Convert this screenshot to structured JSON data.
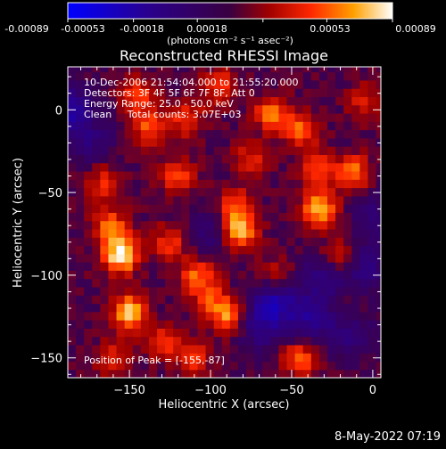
{
  "colorbar": {
    "ticks": [
      "-0.00089",
      "-0.00053",
      "-0.00018",
      "0.00018",
      "0.00053",
      "0.00089"
    ],
    "units": "(photons cm⁻² s⁻¹ asec⁻²)"
  },
  "timestamp": "8-May-2022 07:19",
  "chart_data": {
    "type": "heatmap",
    "title": "Reconstructed RHESSI Image",
    "xlabel": "Heliocentric X (arcsec)",
    "ylabel": "Heliocentric Y (arcsec)",
    "xlim": [
      -188,
      5
    ],
    "ylim": [
      -162,
      26
    ],
    "xticks": [
      -150,
      -100,
      -50,
      0
    ],
    "yticks": [
      0,
      -50,
      -100,
      -150
    ],
    "colorbar_range": [
      -0.00089,
      0.00089
    ],
    "annotations": [
      "10-Dec-2006 21:54:04.000 to 21:55:20.000",
      "Detectors: 3F 4F 5F 6F 7F 8F, Att 0",
      "Energy Range: 25.0 - 50.0 keV",
      "Clean     Total counts: 3.07E+03"
    ],
    "peak_label": "Position of Peak = [-155,-87]",
    "hotspots": [
      {
        "x": -155,
        "y": -87,
        "v": 1.0
      },
      {
        "x": -150,
        "y": -122,
        "v": 0.8
      },
      {
        "x": -162,
        "y": -70,
        "v": 0.55
      },
      {
        "x": -165,
        "y": -45,
        "v": 0.45
      },
      {
        "x": -138,
        "y": -10,
        "v": 0.55
      },
      {
        "x": -115,
        "y": -5,
        "v": 0.45
      },
      {
        "x": -120,
        "y": -40,
        "v": 0.5
      },
      {
        "x": -82,
        "y": -73,
        "v": 0.85
      },
      {
        "x": -85,
        "y": -58,
        "v": 0.5
      },
      {
        "x": -33,
        "y": -60,
        "v": 0.8
      },
      {
        "x": -35,
        "y": -35,
        "v": 0.5
      },
      {
        "x": -62,
        "y": -2,
        "v": 0.6
      },
      {
        "x": -45,
        "y": -12,
        "v": 0.55
      },
      {
        "x": -12,
        "y": -38,
        "v": 0.6
      },
      {
        "x": -20,
        "y": -88,
        "v": 0.5
      },
      {
        "x": -88,
        "y": -125,
        "v": 0.65
      },
      {
        "x": -100,
        "y": -115,
        "v": 0.45
      },
      {
        "x": -108,
        "y": -100,
        "v": 0.55
      },
      {
        "x": -125,
        "y": -80,
        "v": 0.45
      },
      {
        "x": -45,
        "y": -150,
        "v": 0.55
      },
      {
        "x": -145,
        "y": 10,
        "v": 0.45
      },
      {
        "x": -95,
        "y": 15,
        "v": 0.45
      },
      {
        "x": -110,
        "y": -150,
        "v": 0.4
      },
      {
        "x": -130,
        "y": -140,
        "v": 0.45
      },
      {
        "x": -160,
        "y": -150,
        "v": 0.4
      },
      {
        "x": -60,
        "y": -100,
        "v": 0.35
      },
      {
        "x": -15,
        "y": -125,
        "v": 0.35
      },
      {
        "x": -75,
        "y": -30,
        "v": 0.4
      },
      {
        "x": -5,
        "y": 5,
        "v": 0.35
      },
      {
        "x": -175,
        "y": -10,
        "v": 0.3
      }
    ],
    "coldspots": [
      {
        "x": -185,
        "y": 0,
        "v": -0.6
      },
      {
        "x": -175,
        "y": -15,
        "v": -0.5
      },
      {
        "x": -60,
        "y": -115,
        "v": -0.55
      },
      {
        "x": -40,
        "y": -125,
        "v": -0.5
      },
      {
        "x": -15,
        "y": -132,
        "v": -0.55
      },
      {
        "x": -30,
        "y": -100,
        "v": -0.4
      },
      {
        "x": -70,
        "y": -130,
        "v": -0.45
      },
      {
        "x": -5,
        "y": -95,
        "v": -0.4
      },
      {
        "x": -100,
        "y": -75,
        "v": -0.3
      },
      {
        "x": 0,
        "y": -65,
        "v": -0.35
      }
    ]
  }
}
